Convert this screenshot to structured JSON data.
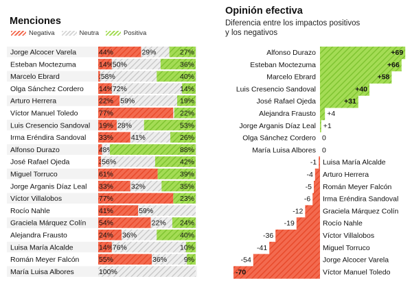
{
  "left_panel": {
    "title": "Menciones",
    "legend": [
      {
        "label": "Negativa",
        "color": "#f0563c"
      },
      {
        "label": "Neutra",
        "color": "#c9c9c9"
      },
      {
        "label": "Positiva",
        "color": "#8fd13f"
      }
    ]
  },
  "right_panel": {
    "title": "Opinión efectiva",
    "subtitle_line1": "Diferencia entre los impactos positivos",
    "subtitle_line2": "y los negativos"
  },
  "chart_data": [
    {
      "type": "bar",
      "stacked": true,
      "orientation": "horizontal",
      "title": "Menciones",
      "legend_position": "top-left",
      "colors": {
        "Negativa": "#f0563c",
        "Neutra": "#c9c9c9",
        "Positiva": "#8fd13f"
      },
      "series": [
        {
          "name": "Negativa"
        },
        {
          "name": "Neutra"
        },
        {
          "name": "Positiva"
        }
      ],
      "rows": [
        {
          "name": "Jorge Alcocer Varela",
          "neg": 44,
          "neu": 29,
          "pos": 27,
          "labels": [
            "44%",
            "29%",
            "27%"
          ]
        },
        {
          "name": "Esteban Moctezuma",
          "neg": 14,
          "neu": 50,
          "pos": 36,
          "labels": [
            "14%",
            "50%",
            "36%"
          ]
        },
        {
          "name": "Marcelo Ebrard",
          "neg": 2,
          "neu": 58,
          "pos": 40,
          "labels": [
            "2%",
            "58%",
            "40%"
          ]
        },
        {
          "name": "Olga Sánchez Cordero",
          "neg": 14,
          "neu": 72,
          "pos": 14,
          "labels": [
            "14%",
            "72%",
            "14%"
          ]
        },
        {
          "name": "Arturo Herrera",
          "neg": 22,
          "neu": 59,
          "pos": 19,
          "labels": [
            "22%",
            "59%",
            "19%"
          ]
        },
        {
          "name": "Víctor Manuel Toledo",
          "neg": 77,
          "neu": 1,
          "pos": 22,
          "labels": [
            "77%",
            "1%",
            "22%"
          ]
        },
        {
          "name": "Luis Cresencio Sandoval",
          "neg": 19,
          "neu": 28,
          "pos": 53,
          "labels": [
            "19%",
            "28%",
            "53%"
          ]
        },
        {
          "name": "Irma Eréndira Sandoval",
          "neg": 33,
          "neu": 41,
          "pos": 26,
          "labels": [
            "33%",
            "41%",
            "26%"
          ]
        },
        {
          "name": "Alfonso Durazo",
          "neg": 4,
          "neu": 8,
          "pos": 88,
          "labels": [
            "4%",
            "8%",
            "88%"
          ]
        },
        {
          "name": "José Rafael Ojeda",
          "neg": 3,
          "neu": 56,
          "pos": 42,
          "labels": [
            "3%",
            "56%",
            "42%"
          ]
        },
        {
          "name": "Miguel Torruco",
          "neg": 61,
          "neu": 0,
          "pos": 39,
          "labels": [
            "61%",
            "",
            "39%"
          ]
        },
        {
          "name": "Jorge Arganis Díaz Leal",
          "neg": 33,
          "neu": 32,
          "pos": 35,
          "labels": [
            "33%",
            "32%",
            "35%"
          ]
        },
        {
          "name": "Víctor Villalobos",
          "neg": 77,
          "neu": 0,
          "pos": 23,
          "labels": [
            "77%",
            "",
            "23%"
          ]
        },
        {
          "name": "Rocío Nahle",
          "neg": 41,
          "neu": 59,
          "pos": 0,
          "labels": [
            "41%",
            "59%",
            ""
          ]
        },
        {
          "name": "Graciela Márquez Colín",
          "neg": 54,
          "neu": 22,
          "pos": 24,
          "labels": [
            "54%",
            "22%",
            "24%"
          ]
        },
        {
          "name": "Alejandra Frausto",
          "neg": 24,
          "neu": 36,
          "pos": 40,
          "labels": [
            "24%",
            "36%",
            "40%"
          ]
        },
        {
          "name": "Luisa María Alcalde",
          "neg": 14,
          "neu": 76,
          "pos": 10,
          "labels": [
            "14%",
            "76%",
            "10%"
          ]
        },
        {
          "name": "Román Meyer Falcón",
          "neg": 55,
          "neu": 36,
          "pos": 9,
          "labels": [
            "55%",
            "36%",
            "9%"
          ]
        },
        {
          "name": "María Luisa Albores",
          "neg": 0,
          "neu": 100,
          "pos": 0,
          "labels": [
            "",
            "100%",
            ""
          ]
        }
      ]
    },
    {
      "type": "bar",
      "orientation": "horizontal",
      "title": "Opinión efectiva",
      "subtitle": "Diferencia entre los impactos positivos y los negativos",
      "colors": {
        "positive": "#8fd13f",
        "negative": "#f0563c"
      },
      "rows": [
        {
          "name": "Alfonso Durazo",
          "value": 69,
          "label": "+69"
        },
        {
          "name": "Esteban Moctezuma",
          "value": 66,
          "label": "+66"
        },
        {
          "name": "Marcelo Ebrard",
          "value": 58,
          "label": "+58"
        },
        {
          "name": "Luis Cresencio Sandoval",
          "value": 40,
          "label": "+40"
        },
        {
          "name": "José Rafael Ojeda",
          "value": 31,
          "label": "+31"
        },
        {
          "name": "Alejandra Frausto",
          "value": 4,
          "label": "+4"
        },
        {
          "name": "Jorge Arganis Díaz Leal",
          "value": 1,
          "label": "+1"
        },
        {
          "name": "Olga Sánchez Cordero",
          "value": 0,
          "label": "0"
        },
        {
          "name": "María Luisa Albores",
          "value": 0,
          "label": "0"
        },
        {
          "name": "Luisa María Alcalde",
          "value": -1,
          "label": "-1"
        },
        {
          "name": "Arturo Herrera",
          "value": -4,
          "label": "-4"
        },
        {
          "name": "Román Meyer Falcón",
          "value": -5,
          "label": "-5"
        },
        {
          "name": "Irma Eréndira Sandoval",
          "value": -6,
          "label": "-6"
        },
        {
          "name": "Graciela Márquez Colín",
          "value": -12,
          "label": "-12"
        },
        {
          "name": "Rocío Nahle",
          "value": -19,
          "label": "-19"
        },
        {
          "name": "Víctor Villalobos",
          "value": -36,
          "label": "-36"
        },
        {
          "name": "Miguel Torruco",
          "value": -41,
          "label": "-41"
        },
        {
          "name": "Jorge Alcocer Varela",
          "value": -54,
          "label": "-54"
        },
        {
          "name": "Víctor Manuel Toledo",
          "value": -70,
          "label": "-70"
        }
      ]
    }
  ]
}
